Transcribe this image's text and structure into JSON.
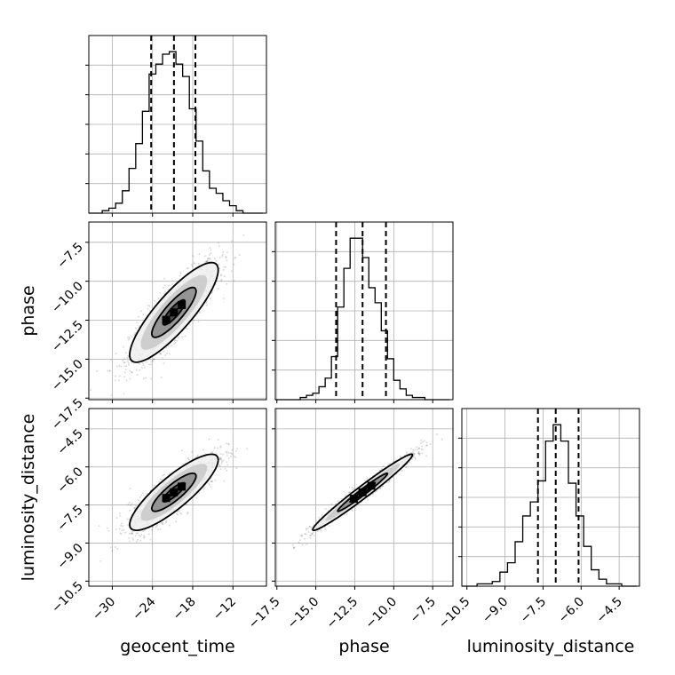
{
  "chart_data": {
    "type": "corner",
    "parameters": [
      "geocent_time",
      "phase",
      "luminosity_distance"
    ],
    "axis_labels": {
      "geocent_time": "geocent_time",
      "phase": "phase",
      "luminosity_distance": "luminosity_distance"
    },
    "ranges": {
      "geocent_time": [
        -33.5,
        -7.0
      ],
      "phase": [
        -17.6,
        -6.2
      ],
      "luminosity_distance": [
        -10.7,
        -3.7
      ]
    },
    "ticks": {
      "geocent_time": [
        -30,
        -24,
        -18,
        -12
      ],
      "phase": [
        -17.5,
        -15.0,
        -12.5,
        -10.0,
        -7.5
      ],
      "luminosity_distance": [
        -10.5,
        -9.0,
        -7.5,
        -6.0,
        -4.5
      ]
    },
    "tick_labels": {
      "geocent_time": [
        "−30",
        "−24",
        "−18",
        "−12"
      ],
      "phase": [
        "−17.5",
        "−15.0",
        "−12.5",
        "−10.0",
        "−7.5"
      ],
      "luminosity_distance": [
        "−10.5",
        "−9.0",
        "−7.5",
        "−6.0",
        "−4.5"
      ]
    },
    "quantiles": {
      "geocent_time": [
        -24.2,
        -20.8,
        -17.6
      ],
      "phase": [
        -13.7,
        -12.0,
        -10.5
      ],
      "luminosity_distance": [
        -7.7,
        -7.0,
        -6.1
      ]
    },
    "histograms_1d": {
      "geocent_time": {
        "bin_edges": [
          -33.5,
          -32.5,
          -31.5,
          -30.5,
          -29.5,
          -28.5,
          -27.5,
          -26.5,
          -25.5,
          -24.5,
          -23.5,
          -22.5,
          -21.5,
          -20.5,
          -19.5,
          -18.5,
          -17.5,
          -16.5,
          -15.5,
          -14.5,
          -13.5,
          -12.5,
          -11.5,
          -10.5,
          -9.5,
          -8.5,
          -7.5
        ],
        "counts": [
          0,
          0,
          1,
          2,
          4,
          9,
          18,
          28,
          41,
          56,
          60,
          64,
          65,
          60,
          55,
          42,
          29,
          17,
          10,
          8,
          5,
          3,
          1,
          0,
          0,
          0
        ]
      },
      "phase": {
        "bin_edges": [
          -17.6,
          -17.2,
          -16.8,
          -16.4,
          -16.0,
          -15.6,
          -15.2,
          -14.8,
          -14.4,
          -14.0,
          -13.6,
          -13.2,
          -12.8,
          -12.4,
          -12.0,
          -11.6,
          -11.2,
          -10.8,
          -10.4,
          -10.0,
          -9.6,
          -9.2,
          -8.8,
          -8.4,
          -8.0,
          -7.6,
          -7.2,
          -6.8,
          -6.4
        ],
        "counts": [
          0,
          0,
          0,
          0,
          1,
          2,
          3,
          6,
          10,
          20,
          43,
          61,
          75,
          75,
          66,
          52,
          45,
          32,
          19,
          9,
          5,
          2,
          1,
          1,
          0,
          0,
          0,
          0
        ]
      },
      "luminosity_distance": {
        "bin_edges": [
          -10.7,
          -10.4,
          -10.1,
          -9.8,
          -9.5,
          -9.2,
          -8.9,
          -8.6,
          -8.3,
          -8.0,
          -7.7,
          -7.4,
          -7.1,
          -6.8,
          -6.5,
          -6.2,
          -5.9,
          -5.6,
          -5.3,
          -5.0,
          -4.7,
          -4.4,
          -4.1,
          -3.8
        ],
        "counts": [
          0,
          0,
          1,
          1,
          2,
          6,
          10,
          19,
          30,
          36,
          45,
          62,
          69,
          62,
          44,
          30,
          17,
          7,
          3,
          1,
          1,
          0,
          0
        ]
      }
    },
    "joint_2d": [
      {
        "x": "geocent_time",
        "y": "phase",
        "correlation": 0.85,
        "center": [
          -20.8,
          -12.0
        ],
        "sd": [
          3.3,
          1.6
        ]
      },
      {
        "x": "geocent_time",
        "y": "luminosity_distance",
        "correlation": 0.85,
        "center": [
          -20.8,
          -7.0
        ],
        "sd": [
          3.3,
          0.75
        ]
      },
      {
        "x": "phase",
        "y": "luminosity_distance",
        "correlation": 0.98,
        "center": [
          -12.0,
          -7.0
        ],
        "sd": [
          1.6,
          0.75
        ]
      }
    ],
    "contour_levels_sigma": [
      0.5,
      1.0,
      1.5,
      2.0
    ],
    "grid": true
  }
}
